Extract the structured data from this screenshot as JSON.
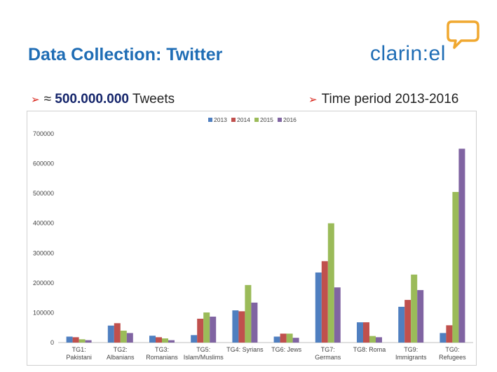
{
  "slide": {
    "title": "Data Collection: Twitter",
    "logo_text": "clarin:el",
    "bullets": [
      {
        "prefix": "≈ ",
        "strong": "500.000.000",
        "suffix": " Tweets"
      },
      {
        "text": "Time period 2013-2016"
      }
    ]
  },
  "colors": {
    "title": "#1f6db5",
    "logo": "#1f6db5",
    "logo_bubble": "#f0a830",
    "bullet_arrow": "#d9261c",
    "series": [
      "#4f7fc0",
      "#c0504d",
      "#9bbb59",
      "#8064a2"
    ]
  },
  "chart_data": {
    "type": "bar",
    "legend_position": "top-center",
    "grid": false,
    "ylim": [
      0,
      700000
    ],
    "yticks": [
      "0",
      "100000",
      "200000",
      "300000",
      "400000",
      "500000",
      "600000",
      "700000"
    ],
    "categories": [
      [
        "TG1:",
        "Pakistani"
      ],
      [
        "TG2:",
        "Albanians"
      ],
      [
        "TG3:",
        "Romanians"
      ],
      [
        "TG5:",
        "Islam/Muslims"
      ],
      [
        "TG4: Syrians"
      ],
      [
        "TG6: Jews"
      ],
      [
        "TG7:",
        "Germans"
      ],
      [
        "TG8: Roma"
      ],
      [
        "TG9:",
        "Immigrants"
      ],
      [
        "TG0:",
        "Refugees"
      ]
    ],
    "series": [
      {
        "name": "2013",
        "values": [
          20000,
          57000,
          23000,
          25000,
          108000,
          20000,
          235000,
          68000,
          120000,
          32000
        ]
      },
      {
        "name": "2014",
        "values": [
          18000,
          65000,
          18000,
          80000,
          105000,
          30000,
          273000,
          68000,
          143000,
          58000
        ]
      },
      {
        "name": "2015",
        "values": [
          11000,
          40000,
          14000,
          101000,
          193000,
          30000,
          400000,
          22000,
          228000,
          505000
        ]
      },
      {
        "name": "2016",
        "values": [
          8000,
          32000,
          8000,
          87000,
          134000,
          16000,
          185000,
          18000,
          176000,
          650000
        ]
      }
    ]
  }
}
